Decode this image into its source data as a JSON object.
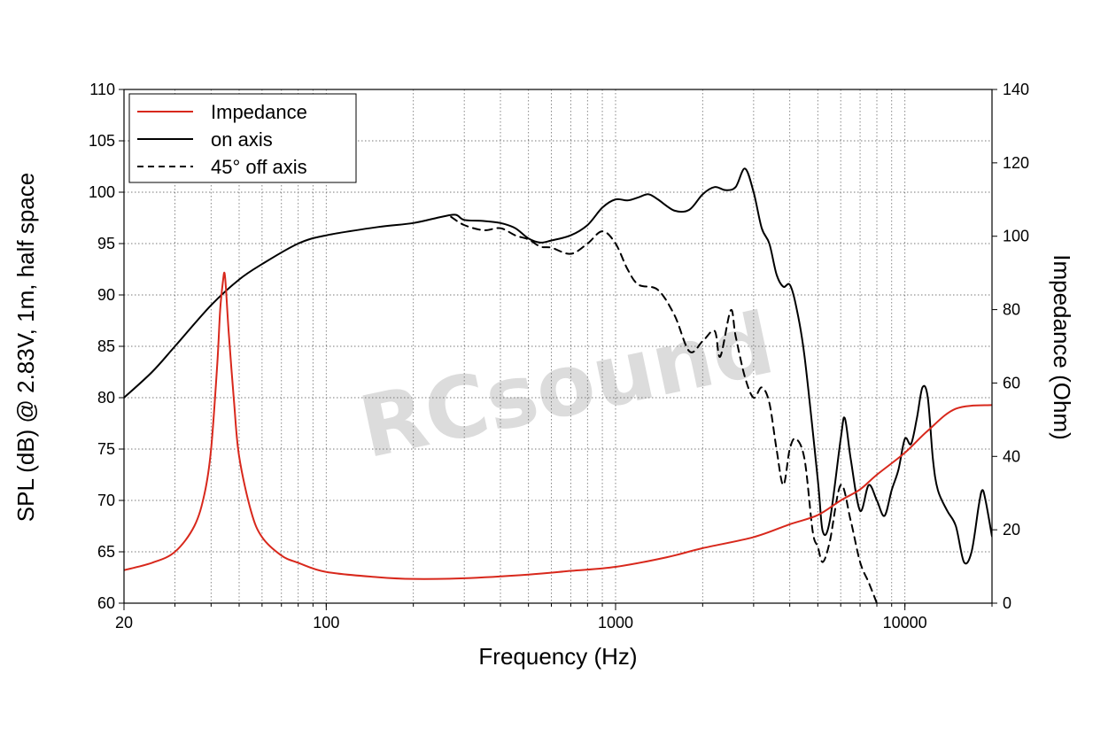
{
  "chart_data": {
    "type": "line",
    "title": "",
    "xlabel": "Frequency (Hz)",
    "ylabel": "SPL (dB) @ 2.83V, 1m, half space",
    "y2label": "Impedance (Ohm)",
    "x_scale": "log",
    "xlim": [
      20,
      20000
    ],
    "ylim": [
      60,
      110
    ],
    "y2lim": [
      0,
      140
    ],
    "x_ticks": [
      "20",
      "100",
      "1000",
      "10000"
    ],
    "y_ticks": [
      "60",
      "65",
      "70",
      "75",
      "80",
      "85",
      "90",
      "95",
      "100",
      "105",
      "110"
    ],
    "y2_ticks": [
      "0",
      "20",
      "40",
      "60",
      "80",
      "100",
      "120",
      "140"
    ],
    "grid": true,
    "legend_position": "top-left",
    "watermark": "RCsound",
    "series": [
      {
        "name": "Impedance",
        "axis": "right",
        "color": "#d8281c",
        "dash": "solid",
        "points": [
          [
            20,
            9
          ],
          [
            25,
            11
          ],
          [
            30,
            14
          ],
          [
            35,
            21
          ],
          [
            38,
            30
          ],
          [
            40,
            42
          ],
          [
            42,
            65
          ],
          [
            43,
            80
          ],
          [
            44,
            88
          ],
          [
            44.5,
            90
          ],
          [
            45,
            86
          ],
          [
            46,
            74
          ],
          [
            48,
            55
          ],
          [
            50,
            40
          ],
          [
            55,
            25
          ],
          [
            60,
            18
          ],
          [
            70,
            13
          ],
          [
            80,
            11
          ],
          [
            100,
            8.5
          ],
          [
            150,
            7.1
          ],
          [
            200,
            6.6
          ],
          [
            300,
            6.8
          ],
          [
            500,
            7.8
          ],
          [
            700,
            8.8
          ],
          [
            1000,
            9.9
          ],
          [
            1500,
            12.5
          ],
          [
            2000,
            15
          ],
          [
            3000,
            18
          ],
          [
            4000,
            21.5
          ],
          [
            5000,
            24
          ],
          [
            6000,
            28
          ],
          [
            7000,
            31
          ],
          [
            8000,
            35
          ],
          [
            10000,
            41
          ],
          [
            12000,
            47
          ],
          [
            15000,
            53
          ],
          [
            20000,
            54
          ]
        ]
      },
      {
        "name": "on axis",
        "axis": "left",
        "color": "#000000",
        "dash": "solid",
        "points": [
          [
            20,
            80
          ],
          [
            25,
            82.5
          ],
          [
            30,
            85
          ],
          [
            40,
            89
          ],
          [
            50,
            91.5
          ],
          [
            60,
            93
          ],
          [
            80,
            95
          ],
          [
            100,
            95.8
          ],
          [
            150,
            96.6
          ],
          [
            200,
            97
          ],
          [
            250,
            97.6
          ],
          [
            280,
            97.8
          ],
          [
            300,
            97.3
          ],
          [
            350,
            97.2
          ],
          [
            400,
            97
          ],
          [
            450,
            96.5
          ],
          [
            500,
            95.5
          ],
          [
            550,
            95.1
          ],
          [
            600,
            95.3
          ],
          [
            700,
            95.8
          ],
          [
            800,
            96.8
          ],
          [
            900,
            98.5
          ],
          [
            1000,
            99.3
          ],
          [
            1100,
            99.2
          ],
          [
            1200,
            99.5
          ],
          [
            1300,
            99.8
          ],
          [
            1400,
            99.3
          ],
          [
            1600,
            98.2
          ],
          [
            1800,
            98.3
          ],
          [
            2000,
            99.8
          ],
          [
            2200,
            100.5
          ],
          [
            2400,
            100.2
          ],
          [
            2600,
            100.5
          ],
          [
            2800,
            102.3
          ],
          [
            3000,
            100
          ],
          [
            3200,
            96.5
          ],
          [
            3400,
            95
          ],
          [
            3600,
            92
          ],
          [
            3800,
            90.8
          ],
          [
            4000,
            91
          ],
          [
            4200,
            89
          ],
          [
            4500,
            84
          ],
          [
            5000,
            72
          ],
          [
            5200,
            67
          ],
          [
            5500,
            68
          ],
          [
            6000,
            76
          ],
          [
            6200,
            78
          ],
          [
            6500,
            74
          ],
          [
            7000,
            69
          ],
          [
            7500,
            71.5
          ],
          [
            8000,
            70
          ],
          [
            8500,
            68.5
          ],
          [
            9000,
            71
          ],
          [
            9500,
            73
          ],
          [
            10000,
            76
          ],
          [
            10500,
            75.5
          ],
          [
            11000,
            78
          ],
          [
            11500,
            81
          ],
          [
            12000,
            80
          ],
          [
            12500,
            74
          ],
          [
            13000,
            71
          ],
          [
            14000,
            69
          ],
          [
            15000,
            67.5
          ],
          [
            16000,
            64
          ],
          [
            17000,
            65
          ],
          [
            18000,
            69.5
          ],
          [
            18500,
            71
          ],
          [
            19000,
            70
          ],
          [
            20000,
            66.5
          ]
        ]
      },
      {
        "name": "45° off axis",
        "axis": "left",
        "color": "#000000",
        "dash": "dashed",
        "points": [
          [
            270,
            97.6
          ],
          [
            300,
            96.8
          ],
          [
            350,
            96.3
          ],
          [
            400,
            96.5
          ],
          [
            450,
            95.8
          ],
          [
            500,
            95.4
          ],
          [
            550,
            94.7
          ],
          [
            600,
            94.6
          ],
          [
            700,
            94
          ],
          [
            800,
            95
          ],
          [
            900,
            96.2
          ],
          [
            1000,
            95
          ],
          [
            1100,
            92.5
          ],
          [
            1200,
            91
          ],
          [
            1400,
            90.5
          ],
          [
            1600,
            88
          ],
          [
            1800,
            84.5
          ],
          [
            2000,
            85.5
          ],
          [
            2200,
            86.5
          ],
          [
            2300,
            84
          ],
          [
            2500,
            88.5
          ],
          [
            2600,
            86
          ],
          [
            2800,
            82
          ],
          [
            3000,
            80
          ],
          [
            3200,
            81
          ],
          [
            3400,
            79.5
          ],
          [
            3600,
            75
          ],
          [
            3800,
            71.5
          ],
          [
            4000,
            75
          ],
          [
            4200,
            76
          ],
          [
            4500,
            74
          ],
          [
            4800,
            67
          ],
          [
            5000,
            65.5
          ],
          [
            5200,
            64
          ],
          [
            5500,
            66
          ],
          [
            6000,
            71.5
          ],
          [
            6500,
            68
          ],
          [
            7000,
            64
          ],
          [
            7500,
            62
          ],
          [
            8000,
            60
          ]
        ]
      }
    ]
  }
}
